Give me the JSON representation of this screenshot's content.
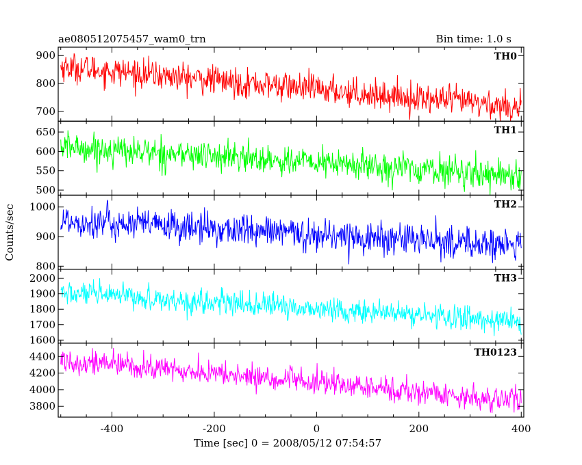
{
  "header": {
    "title": "ae080512075457_wam0_trn",
    "bin_time": "Bin time: 1.0 s"
  },
  "xlabel": "Time [sec] 0 = 2008/05/12 07:54:57",
  "ylabel": "Counts/sec",
  "chart_data": {
    "type": "line",
    "title": "ae080512075457_wam0_trn",
    "xlabel": "Time [sec] 0 = 2008/05/12 07:54:57",
    "ylabel": "Counts/sec",
    "xlim": [
      -505,
      405
    ],
    "x_range": [
      -500,
      400
    ],
    "bin_time_s": 1.0,
    "x_ticks": [
      -400,
      -200,
      0,
      200,
      400
    ],
    "grid": false,
    "panels": [
      {
        "name": "TH0",
        "color": "#ff0000",
        "ylim": [
          665,
          930
        ],
        "y_ticks": [
          700,
          800,
          900
        ],
        "trend_start": 860,
        "trend_end": 715,
        "noise": 30
      },
      {
        "name": "TH1",
        "color": "#00ff00",
        "ylim": [
          487,
          678
        ],
        "y_ticks": [
          500,
          550,
          600,
          650
        ],
        "trend_start": 612,
        "trend_end": 538,
        "noise": 22
      },
      {
        "name": "TH2",
        "color": "#0000ff",
        "ylim": [
          790,
          1040
        ],
        "y_ticks": [
          800,
          900,
          1000
        ],
        "trend_start": 955,
        "trend_end": 868,
        "noise": 32
      },
      {
        "name": "TH3",
        "color": "#00ffff",
        "ylim": [
          1580,
          2060
        ],
        "y_ticks": [
          1600,
          1700,
          1800,
          1900,
          2000
        ],
        "trend_start": 1905,
        "trend_end": 1720,
        "noise": 45
      },
      {
        "name": "TH0123",
        "color": "#ff00ff",
        "ylim": [
          3670,
          4560
        ],
        "y_ticks": [
          3800,
          4000,
          4200,
          4400
        ],
        "trend_start": 4360,
        "trend_end": 3860,
        "noise": 85
      }
    ]
  }
}
